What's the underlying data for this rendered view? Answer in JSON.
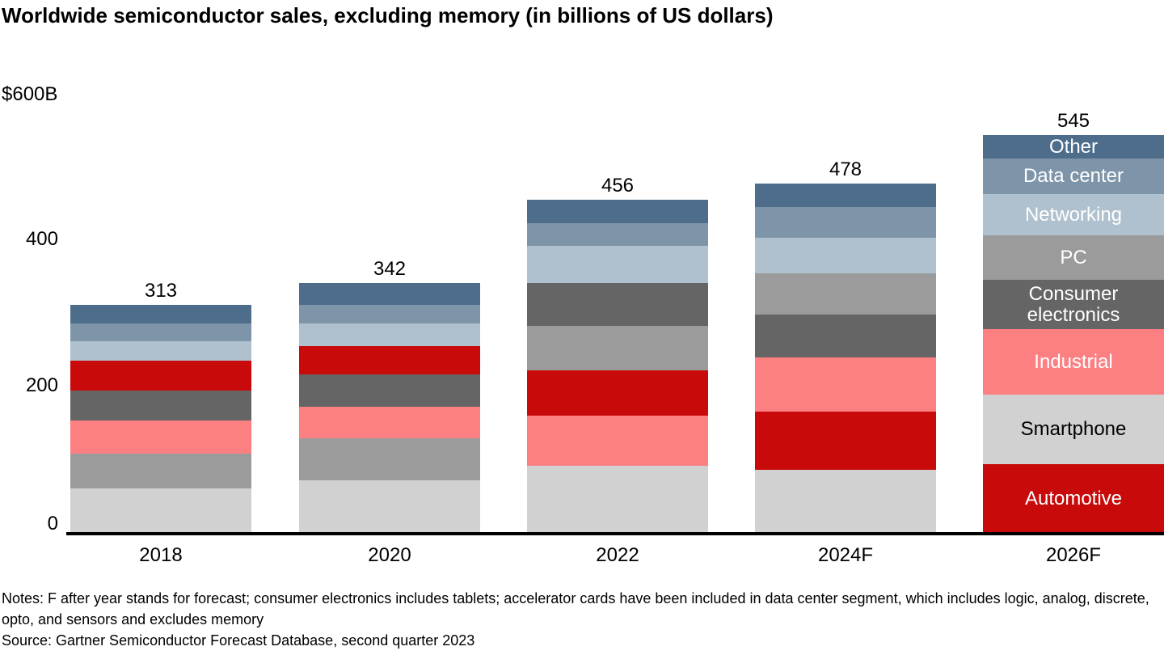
{
  "title": "Worldwide semiconductor sales, excluding memory (in billions of US dollars)",
  "y_axis": {
    "max_label": "$600B",
    "ticks": [
      "400",
      "200",
      "0"
    ]
  },
  "chart_data": {
    "type": "bar",
    "stacked": true,
    "title": "Worldwide semiconductor sales, excluding memory",
    "unit": "billions of US dollars",
    "ylim": [
      0,
      600
    ],
    "gridlines": false,
    "legend_position": "inline-labels-on-last-bar",
    "labeled_category": "2026F",
    "categories": [
      "2018",
      "2020",
      "2022",
      "2024F",
      "2026F"
    ],
    "totals": [
      313,
      342,
      456,
      478,
      545
    ],
    "segment_names": [
      "Automotive",
      "Smartphone",
      "Industrial",
      "Consumer electronics",
      "PC",
      "Networking",
      "Data center",
      "Other"
    ],
    "bars": [
      {
        "category": "2018",
        "total": 313,
        "segments_bottom_to_top": [
          {
            "name": "Smartphone",
            "value": 62
          },
          {
            "name": "PC",
            "value": 47
          },
          {
            "name": "Industrial",
            "value": 46
          },
          {
            "name": "Consumer electronics",
            "value": 41
          },
          {
            "name": "Automotive",
            "value": 41
          },
          {
            "name": "Networking",
            "value": 26
          },
          {
            "name": "Data center",
            "value": 24
          },
          {
            "name": "Other",
            "value": 26
          }
        ]
      },
      {
        "category": "2020",
        "total": 342,
        "segments_bottom_to_top": [
          {
            "name": "Smartphone",
            "value": 73
          },
          {
            "name": "PC",
            "value": 57
          },
          {
            "name": "Industrial",
            "value": 44
          },
          {
            "name": "Consumer electronics",
            "value": 44
          },
          {
            "name": "Automotive",
            "value": 38
          },
          {
            "name": "Networking",
            "value": 31
          },
          {
            "name": "Data center",
            "value": 26
          },
          {
            "name": "Other",
            "value": 29
          }
        ]
      },
      {
        "category": "2022",
        "total": 456,
        "segments_bottom_to_top": [
          {
            "name": "Smartphone",
            "value": 93
          },
          {
            "name": "Industrial",
            "value": 68
          },
          {
            "name": "Automotive",
            "value": 62
          },
          {
            "name": "PC",
            "value": 61
          },
          {
            "name": "Consumer electronics",
            "value": 59
          },
          {
            "name": "Networking",
            "value": 50
          },
          {
            "name": "Data center",
            "value": 31
          },
          {
            "name": "Other",
            "value": 32
          }
        ]
      },
      {
        "category": "2024F",
        "total": 478,
        "segments_bottom_to_top": [
          {
            "name": "Smartphone",
            "value": 87
          },
          {
            "name": "Automotive",
            "value": 80
          },
          {
            "name": "Industrial",
            "value": 74
          },
          {
            "name": "Consumer electronics",
            "value": 59
          },
          {
            "name": "PC",
            "value": 56
          },
          {
            "name": "Networking",
            "value": 48
          },
          {
            "name": "Data center",
            "value": 42
          },
          {
            "name": "Other",
            "value": 32
          }
        ]
      },
      {
        "category": "2026F",
        "total": 545,
        "show_labels": true,
        "segments_bottom_to_top": [
          {
            "name": "Automotive",
            "value": 95
          },
          {
            "name": "Smartphone",
            "value": 95
          },
          {
            "name": "Industrial",
            "value": 90
          },
          {
            "name": "Consumer electronics",
            "value": 67
          },
          {
            "name": "PC",
            "value": 61
          },
          {
            "name": "Networking",
            "value": 56
          },
          {
            "name": "Data center",
            "value": 49
          },
          {
            "name": "Other",
            "value": 32
          }
        ]
      }
    ],
    "colors": {
      "Automotive": {
        "fill": "#C80A0A",
        "label": "#FFFFFF"
      },
      "Smartphone": {
        "fill": "#D1D1D1",
        "label": "#000000"
      },
      "Industrial": {
        "fill": "#FC7F82",
        "label": "#FFFFFF"
      },
      "Consumer electronics": {
        "fill": "#656565",
        "label": "#FFFFFF"
      },
      "PC": {
        "fill": "#9B9B9B",
        "label": "#FFFFFF"
      },
      "Networking": {
        "fill": "#AFC1CE",
        "label": "#FFFFFF"
      },
      "Data center": {
        "fill": "#7D94A9",
        "label": "#FFFFFF"
      },
      "Other": {
        "fill": "#4D6D8B",
        "label": "#FFFFFF"
      }
    }
  },
  "footer": {
    "notes": "Notes: F after year stands for forecast; consumer electronics includes tablets; accelerator cards have been included in data center segment, which includes logic, analog, discrete, opto, and sensors and excludes memory",
    "source": "Source: Gartner Semiconductor Forecast Database, second quarter 2023"
  }
}
